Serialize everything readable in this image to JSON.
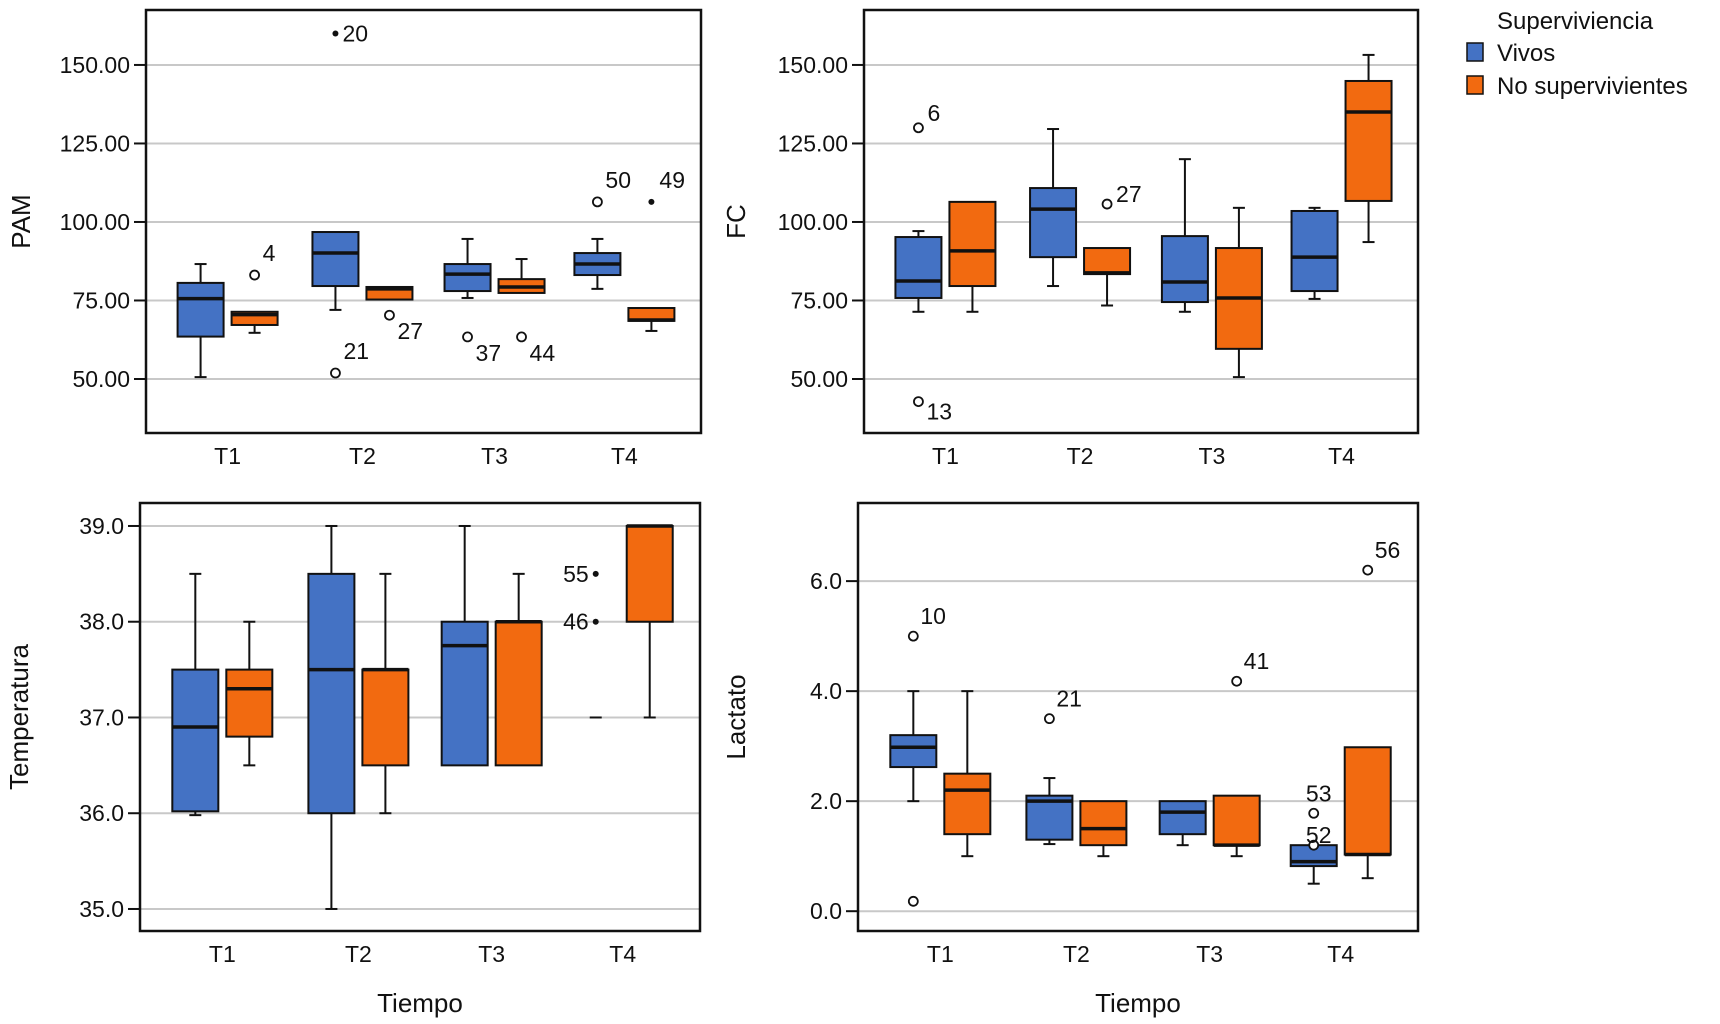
{
  "chart_data": [
    {
      "id": "pam",
      "type": "box",
      "ylabel": "PAM",
      "xlabel": "",
      "categories": [
        "T1",
        "T2",
        "T3",
        "T4"
      ],
      "yticks": [
        50,
        75,
        100,
        125,
        150
      ],
      "ytick_labels": [
        "50.00",
        "75.00",
        "100.00",
        "125.00",
        "150.00"
      ],
      "ylim": [
        32.8,
        167.5
      ],
      "grid": true,
      "series": [
        {
          "name": "Vivos",
          "boxes": [
            {
              "min": 50.6,
              "q1": 63.5,
              "median": 75.6,
              "q3": 80.6,
              "max": 86.6
            },
            {
              "min": 72.0,
              "q1": 79.6,
              "median": 90.1,
              "q3": 96.8,
              "max": 96.8
            },
            {
              "min": 75.8,
              "q1": 78.0,
              "median": 83.4,
              "q3": 86.6,
              "max": 94.6
            },
            {
              "min": 78.7,
              "q1": 83.1,
              "median": 86.6,
              "q3": 90.1,
              "max": 94.6
            }
          ],
          "outliers": [
            {
              "category": "T2",
              "value": 160.0,
              "label": "20",
              "extreme": true
            },
            {
              "category": "T2",
              "value": 51.9,
              "label": "21",
              "extreme": false
            },
            {
              "category": "T3",
              "value": 63.4,
              "label": "37",
              "extreme": false
            },
            {
              "category": "T4",
              "value": 106.4,
              "label": "50",
              "extreme": false
            }
          ]
        },
        {
          "name": "No supervivientes",
          "boxes": [
            {
              "min": 64.7,
              "q1": 67.2,
              "median": 70.5,
              "q3": 71.4,
              "max": 71.4
            },
            {
              "min": 75.3,
              "q1": 75.3,
              "median": 78.7,
              "q3": 79.3,
              "max": 79.3
            },
            {
              "min": 77.4,
              "q1": 77.4,
              "median": 79.3,
              "q3": 81.8,
              "max": 88.2
            },
            {
              "min": 65.3,
              "q1": 68.5,
              "median": 68.8,
              "q3": 72.6,
              "max": 72.6
            }
          ],
          "outliers": [
            {
              "category": "T1",
              "value": 83.1,
              "label": "4",
              "extreme": false
            },
            {
              "category": "T2",
              "value": 70.3,
              "label": "27",
              "extreme": false
            },
            {
              "category": "T3",
              "value": 63.4,
              "label": "44",
              "extreme": false
            },
            {
              "category": "T4",
              "value": 106.4,
              "label": "49",
              "extreme": true
            }
          ]
        }
      ]
    },
    {
      "id": "fc",
      "type": "box",
      "ylabel": "FC",
      "xlabel": "",
      "categories": [
        "T1",
        "T2",
        "T3",
        "T4"
      ],
      "yticks": [
        50,
        75,
        100,
        125,
        150
      ],
      "ytick_labels": [
        "50.00",
        "75.00",
        "100.00",
        "125.00",
        "150.00"
      ],
      "ylim": [
        32.8,
        167.5
      ],
      "grid": true,
      "series": [
        {
          "name": "Vivos",
          "boxes": [
            {
              "min": 71.4,
              "q1": 75.8,
              "median": 81.2,
              "q3": 95.2,
              "max": 97.1
            },
            {
              "min": 79.6,
              "q1": 88.8,
              "median": 104.1,
              "q3": 110.8,
              "max": 129.6
            },
            {
              "min": 71.4,
              "q1": 74.5,
              "median": 80.9,
              "q3": 95.5,
              "max": 120.0
            },
            {
              "min": 75.5,
              "q1": 78.0,
              "median": 88.8,
              "q3": 103.5,
              "max": 104.5
            }
          ],
          "outliers": [
            {
              "category": "T1",
              "value": 130.0,
              "label": "6",
              "extreme": false
            },
            {
              "category": "T1",
              "value": 42.8,
              "label": "13",
              "extreme": false
            }
          ]
        },
        {
          "name": "No supervivientes",
          "boxes": [
            {
              "min": 71.4,
              "q1": 79.6,
              "median": 90.8,
              "q3": 106.4,
              "max": 106.4
            },
            {
              "min": 73.4,
              "q1": 83.4,
              "median": 83.8,
              "q3": 91.7,
              "max": 91.7
            },
            {
              "min": 50.6,
              "q1": 59.6,
              "median": 75.8,
              "q3": 91.7,
              "max": 104.5
            },
            {
              "min": 93.6,
              "q1": 106.7,
              "median": 135.0,
              "q3": 144.9,
              "max": 153.2
            }
          ],
          "outliers": [
            {
              "category": "T2",
              "value": 105.7,
              "label": "27",
              "extreme": false
            }
          ]
        }
      ]
    },
    {
      "id": "temperatura",
      "type": "box",
      "ylabel": "Temperatura",
      "xlabel": "Tiempo",
      "categories": [
        "T1",
        "T2",
        "T3",
        "T4"
      ],
      "yticks": [
        35,
        36,
        37,
        38,
        39
      ],
      "ytick_labels": [
        "35.0",
        "36.0",
        "37.0",
        "38.0",
        "39.0"
      ],
      "ylim": [
        34.77,
        39.24
      ],
      "grid": true,
      "series": [
        {
          "name": "Vivos",
          "boxes": [
            {
              "min": 35.98,
              "q1": 36.02,
              "median": 36.9,
              "q3": 37.5,
              "max": 38.5
            },
            {
              "min": 35.0,
              "q1": 36.0,
              "median": 37.5,
              "q3": 38.5,
              "max": 39.0
            },
            {
              "min": 36.5,
              "q1": 36.5,
              "median": 37.75,
              "q3": 38.0,
              "max": 39.0
            },
            {
              "min": 37.0,
              "q1": 37.0,
              "median": 37.0,
              "q3": 37.0,
              "max": 37.0
            }
          ],
          "outliers": [
            {
              "category": "T4",
              "value": 38.5,
              "label": "55",
              "extreme": true
            },
            {
              "category": "T4",
              "value": 38.0,
              "label": "46",
              "extreme": true
            }
          ]
        },
        {
          "name": "No supervivientes",
          "boxes": [
            {
              "min": 36.5,
              "q1": 36.8,
              "median": 37.3,
              "q3": 37.5,
              "max": 38.0
            },
            {
              "min": 36.0,
              "q1": 36.5,
              "median": 37.5,
              "q3": 37.5,
              "max": 38.5
            },
            {
              "min": 36.5,
              "q1": 36.5,
              "median": 38.0,
              "q3": 38.0,
              "max": 38.5
            },
            {
              "min": 37.0,
              "q1": 38.0,
              "median": 39.0,
              "q3": 39.0,
              "max": 39.0
            }
          ],
          "outliers": []
        }
      ]
    },
    {
      "id": "lactato",
      "type": "box",
      "ylabel": "Lactato",
      "xlabel": "Tiempo",
      "categories": [
        "T1",
        "T2",
        "T3",
        "T4"
      ],
      "yticks": [
        0,
        2,
        4,
        6
      ],
      "ytick_labels": [
        "0.0",
        "2.0",
        "4.0",
        "6.0"
      ],
      "ylim": [
        -0.36,
        7.42
      ],
      "grid": true,
      "series": [
        {
          "name": "Vivos",
          "boxes": [
            {
              "min": 2.0,
              "q1": 2.62,
              "median": 2.98,
              "q3": 3.2,
              "max": 4.0
            },
            {
              "min": 1.22,
              "q1": 1.3,
              "median": 2.0,
              "q3": 2.1,
              "max": 2.42
            },
            {
              "min": 1.2,
              "q1": 1.4,
              "median": 1.8,
              "q3": 2.0,
              "max": 2.0
            },
            {
              "min": 0.5,
              "q1": 0.82,
              "median": 0.9,
              "q3": 1.2,
              "max": 1.2
            }
          ],
          "outliers": [
            {
              "category": "T1",
              "value": 5.0,
              "label": "10",
              "extreme": false
            },
            {
              "category": "T1",
              "value": 0.18,
              "label": "",
              "extreme": false
            },
            {
              "category": "T2",
              "value": 3.5,
              "label": "21",
              "extreme": false
            },
            {
              "category": "T4",
              "value": 1.78,
              "label": "53",
              "extreme": false
            },
            {
              "category": "T4",
              "value": 1.2,
              "label": "52",
              "extreme": false
            }
          ]
        },
        {
          "name": "No supervivientes",
          "boxes": [
            {
              "min": 1.0,
              "q1": 1.4,
              "median": 2.2,
              "q3": 2.5,
              "max": 4.0
            },
            {
              "min": 1.0,
              "q1": 1.2,
              "median": 1.5,
              "q3": 2.0,
              "max": 2.0
            },
            {
              "min": 1.0,
              "q1": 1.2,
              "median": 1.2,
              "q3": 2.1,
              "max": 2.1
            },
            {
              "min": 0.6,
              "q1": 1.03,
              "median": 1.03,
              "q3": 2.98,
              "max": 2.98
            }
          ],
          "outliers": [
            {
              "category": "T3",
              "value": 4.18,
              "label": "41",
              "extreme": false
            },
            {
              "category": "T4",
              "value": 6.2,
              "label": "56",
              "extreme": false
            }
          ]
        }
      ]
    }
  ],
  "legend": {
    "title": "Superviviencia",
    "placement": "top-right",
    "items": [
      {
        "label": "Vivos",
        "color": "#4472C4"
      },
      {
        "label": "No supervivientes",
        "color": "#F26A10"
      }
    ]
  },
  "colors": {
    "Vivos": "#4472C4",
    "No supervivientes": "#F26A10",
    "grid": "#C8C8C8",
    "stroke": "#111111"
  }
}
